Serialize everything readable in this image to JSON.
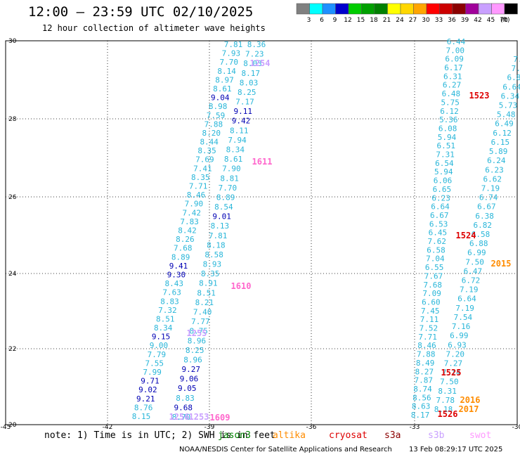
{
  "header": {
    "title": "12:00 – 23:59 UTC 02/10/2025",
    "subtitle": "12 hour collection of altimeter wave heights"
  },
  "legend": {
    "unit": "(ft)",
    "bins": [
      {
        "label": "3",
        "color": "#808080"
      },
      {
        "label": "6",
        "color": "#00ffff"
      },
      {
        "label": "9",
        "color": "#1e90ff"
      },
      {
        "label": "12",
        "color": "#0000cd"
      },
      {
        "label": "15",
        "color": "#00cc00"
      },
      {
        "label": "18",
        "color": "#00a000"
      },
      {
        "label": "21",
        "color": "#008000"
      },
      {
        "label": "24",
        "color": "#ffff00"
      },
      {
        "label": "27",
        "color": "#ffd700"
      },
      {
        "label": "30",
        "color": "#ffa500"
      },
      {
        "label": "33",
        "color": "#ff0000"
      },
      {
        "label": "36",
        "color": "#cc0000"
      },
      {
        "label": "39",
        "color": "#8b0000"
      },
      {
        "label": "42",
        "color": "#a0009a"
      },
      {
        "label": "45",
        "color": "#c9a0ff"
      },
      {
        "label": "70",
        "color": "#ff99ff"
      },
      {
        "label": "",
        "color": "#000000"
      }
    ]
  },
  "map": {
    "x_ticks": [
      "-45",
      "-42",
      "-39",
      "-36",
      "-33",
      "-30"
    ],
    "y_ticks": [
      "30",
      "28",
      "26",
      "24",
      "22",
      "20"
    ],
    "track_colors": {
      "light": "#29b6d9",
      "dark": "#0000b4"
    },
    "tracks": [
      {
        "labels": [
          "7.81",
          "7.93",
          "7.70",
          "8.14",
          "8.97",
          "8.61",
          "9.04",
          "8.98",
          "7.59",
          "7.88",
          "8.20",
          "8.44",
          "8.35",
          "7.69",
          "7.41",
          "8.35",
          "7.71",
          "8.46",
          "7.90",
          "7.42",
          "7.83",
          "8.42",
          "8.26",
          "7.68",
          "8.89",
          "9.41",
          "9.30",
          "8.43",
          "7.63",
          "8.83",
          "7.32",
          "8.51",
          "8.34",
          "9.15",
          "9.00",
          "7.79",
          "7.55",
          "7.99",
          "9.71",
          "9.02",
          "9.21",
          "8.76",
          "8.15"
        ],
        "darks": [
          6,
          25,
          26,
          33,
          38,
          39,
          40
        ]
      },
      {
        "labels": [
          "8.36",
          "7.23",
          "8.03",
          "8.17",
          "8.03",
          "8.25",
          "7.17",
          "9.11",
          "9.42",
          "8.11",
          "7.94",
          "8.34",
          "8.61",
          "7.90",
          "8.81",
          "7.70",
          "8.89",
          "8.54",
          "9.01",
          "8.13",
          "7.81",
          "8.18",
          "8.58",
          "8.93",
          "8.35",
          "8.91",
          "8.51",
          "8.21",
          "7.40",
          "7.77",
          "8.75",
          "8.96",
          "8.25",
          "8.96",
          "9.27",
          "9.06",
          "9.05",
          "8.83",
          "9.68",
          "8.70"
        ],
        "darks": [
          7,
          8,
          18,
          34,
          35,
          36,
          38
        ]
      },
      {
        "labels": [
          "6.44",
          "7.00",
          "6.09",
          "6.17",
          "6.31",
          "6.27",
          "6.48",
          "5.75",
          "6.12",
          "5.36",
          "6.08",
          "5.94",
          "6.51",
          "7.31",
          "6.54",
          "5.94",
          "6.06",
          "6.65",
          "6.23",
          "6.64",
          "6.67",
          "6.53",
          "6.45",
          "7.62",
          "6.58",
          "7.04",
          "6.55",
          "7.67",
          "7.68",
          "7.09",
          "6.60",
          "7.45",
          "7.11",
          "7.52",
          "7.71",
          "8.46",
          "7.88",
          "8.49",
          "8.27",
          "7.87",
          "8.74",
          "8.56",
          "8.63",
          "8.17"
        ],
        "darks": []
      },
      {
        "labels": [
          "7.",
          "7.",
          "6.8",
          "6.64",
          "6.34",
          "5.73",
          "5.48",
          "6.49",
          "6.12",
          "6.15",
          "5.89",
          "6.24",
          "6.23",
          "6.62",
          "7.19",
          "6.74",
          "6.67",
          "6.38",
          "6.82",
          "6.58",
          "6.88",
          "6.99",
          "7.50",
          "6.47",
          "6.72",
          "7.19",
          "6.64",
          "7.19",
          "7.54",
          "7.16",
          "6.99",
          "6.93",
          "7.20",
          "7.27",
          "7.14",
          "7.50",
          "8.31",
          "7.78",
          "8.18"
        ],
        "darks": []
      }
    ],
    "pass_labels": [
      {
        "text": "1254",
        "color": "#c9a0ff"
      },
      {
        "text": "1611",
        "color": "#ff66cc"
      },
      {
        "text": "1255",
        "color": "#c9a0ff"
      },
      {
        "text": "1610",
        "color": "#ff66cc"
      },
      {
        "text": "1253",
        "color": "#c9a0ff"
      },
      {
        "text": "1256",
        "color": "#c9a0ff"
      },
      {
        "text": "1609",
        "color": "#ff66cc"
      },
      {
        "text": "1523",
        "color": "#dd0000"
      },
      {
        "text": "1524",
        "color": "#dd0000"
      },
      {
        "text": "2015",
        "color": "#ff8c00"
      },
      {
        "text": "1525",
        "color": "#dd0000"
      },
      {
        "text": "2016",
        "color": "#ff8c00"
      },
      {
        "text": "2017",
        "color": "#ff8c00"
      },
      {
        "text": "1526",
        "color": "#dd0000"
      }
    ]
  },
  "footer": {
    "note": "note: 1) Time is in UTC; 2) SWH is in feet",
    "missions": [
      {
        "name": "jason3",
        "color": "#008000"
      },
      {
        "name": "altika",
        "color": "#ff8c00"
      },
      {
        "name": "cryosat",
        "color": "#dd0000"
      },
      {
        "name": "s3a",
        "color": "#8b0000"
      },
      {
        "name": "s3b",
        "color": "#c9a0ff"
      },
      {
        "name": "swot",
        "color": "#ff99ff"
      }
    ],
    "credit": "NOAA/NESDIS Center for Satellite Applications and Research",
    "created": "13 Feb 08:29:17 UTC 2025"
  }
}
